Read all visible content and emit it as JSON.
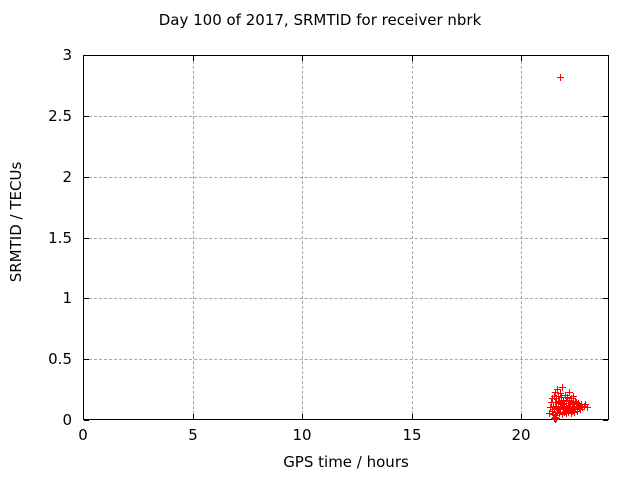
{
  "chart_data": {
    "type": "scatter",
    "title": "Day 100 of 2017, SRMTID for receiver nbrk",
    "xlabel": "GPS time / hours",
    "ylabel": "SRMTID / TECUs",
    "xlim": [
      0,
      24
    ],
    "ylim": [
      0,
      3
    ],
    "xticks": [
      0,
      5,
      10,
      15,
      20
    ],
    "xtick_labels": [
      "0",
      "5",
      "10",
      "15",
      "20"
    ],
    "yticks": [
      0,
      0.5,
      1,
      1.5,
      2,
      2.5,
      3
    ],
    "ytick_labels": [
      "0",
      "0.5",
      "1",
      "1.5",
      "2",
      "2.5",
      "3"
    ],
    "grid": true,
    "legend_position": "none",
    "marker": "plus",
    "colors": {
      "marker": "#ff0000",
      "grid": "#a8a8a8",
      "axis": "#000000",
      "background": "#ffffff"
    },
    "series": [
      {
        "name": "SRMTID",
        "points": [
          [
            21.32,
            0.05
          ],
          [
            21.36,
            0.1
          ],
          [
            21.4,
            0.14
          ],
          [
            21.42,
            0.07
          ],
          [
            21.45,
            0.17
          ],
          [
            21.47,
            0.04
          ],
          [
            21.5,
            0.11
          ],
          [
            21.52,
            0.19
          ],
          [
            21.55,
            0.08
          ],
          [
            21.57,
            0.14
          ],
          [
            21.59,
            0.22
          ],
          [
            21.6,
            0.03
          ],
          [
            21.62,
            0.17
          ],
          [
            21.64,
            0.1
          ],
          [
            21.66,
            0.25
          ],
          [
            21.68,
            0.06
          ],
          [
            21.7,
            0.13
          ],
          [
            21.72,
            0.19
          ],
          [
            21.73,
            0.09
          ],
          [
            21.75,
            0.15
          ],
          [
            21.77,
            0.05
          ],
          [
            21.79,
            0.11
          ],
          [
            21.8,
            0.21
          ],
          [
            21.82,
            0.08
          ],
          [
            21.84,
            0.14
          ],
          [
            21.86,
            0.18
          ],
          [
            21.88,
            0.04
          ],
          [
            21.9,
            0.12
          ],
          [
            21.91,
            0.26
          ],
          [
            21.93,
            0.09
          ],
          [
            21.95,
            0.16
          ],
          [
            21.97,
            0.06
          ],
          [
            21.98,
            0.13
          ],
          [
            22.0,
            0.1
          ],
          [
            22.02,
            0.2
          ],
          [
            22.04,
            0.07
          ],
          [
            22.06,
            0.15
          ],
          [
            22.08,
            0.11
          ],
          [
            22.1,
            0.05
          ],
          [
            22.12,
            0.18
          ],
          [
            22.14,
            0.09
          ],
          [
            22.16,
            0.13
          ],
          [
            22.18,
            0.06
          ],
          [
            22.2,
            0.16
          ],
          [
            22.22,
            0.1
          ],
          [
            22.24,
            0.22
          ],
          [
            22.26,
            0.08
          ],
          [
            22.28,
            0.13
          ],
          [
            22.3,
            0.05
          ],
          [
            22.32,
            0.17
          ],
          [
            22.34,
            0.11
          ],
          [
            22.36,
            0.07
          ],
          [
            22.38,
            0.14
          ],
          [
            22.4,
            0.09
          ],
          [
            22.42,
            0.19
          ],
          [
            22.44,
            0.06
          ],
          [
            22.46,
            0.12
          ],
          [
            22.48,
            0.15
          ],
          [
            22.5,
            0.08
          ],
          [
            22.52,
            0.11
          ],
          [
            22.55,
            0.14
          ],
          [
            22.58,
            0.07
          ],
          [
            22.6,
            0.1
          ],
          [
            22.63,
            0.13
          ],
          [
            22.66,
            0.09
          ],
          [
            22.7,
            0.11
          ],
          [
            22.74,
            0.08
          ],
          [
            22.78,
            0.12
          ],
          [
            22.82,
            0.1
          ],
          [
            22.88,
            0.11
          ],
          [
            22.95,
            0.12
          ],
          [
            23.02,
            0.1
          ],
          [
            21.55,
            0.01
          ],
          [
            21.58,
            0.0
          ],
          [
            21.61,
            0.01
          ],
          [
            21.58,
            0.02
          ],
          [
            21.8,
            2.81
          ]
        ]
      }
    ]
  }
}
